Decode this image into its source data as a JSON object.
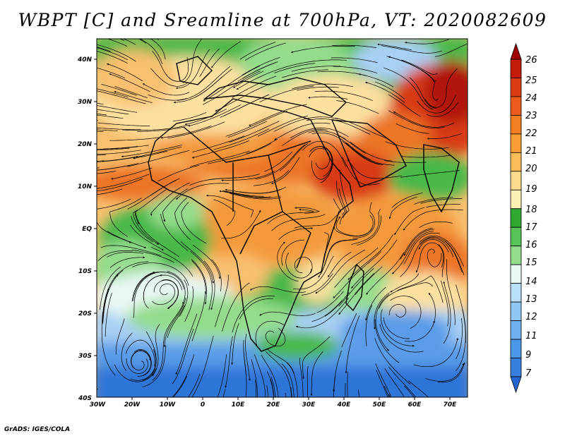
{
  "title": "WBPT [C] and Sreamline at 700hPa, VT: 2020082609",
  "credit": "GrADS: IGES/COLA",
  "lat_labels": [
    "40N",
    "30N",
    "20N",
    "10N",
    "EQ",
    "10S",
    "20S",
    "30S",
    "40S"
  ],
  "lon_labels": [
    "30W",
    "20W",
    "10W",
    "0",
    "10E",
    "20E",
    "30E",
    "40E",
    "50E",
    "60E",
    "70E"
  ],
  "colorbar": {
    "levels": [
      "26",
      "25",
      "24",
      "23",
      "22",
      "21",
      "20",
      "19",
      "18",
      "17",
      "16",
      "15",
      "14",
      "13",
      "12",
      "11",
      "9",
      "7"
    ],
    "colors": [
      "#a00000",
      "#c41a08",
      "#dc3c14",
      "#ec5a1c",
      "#f47e22",
      "#f89c36",
      "#f8bc58",
      "#fcdc8c",
      "#fcf0b4",
      "#30a830",
      "#58c458",
      "#94dc8c",
      "#e8f8f4",
      "#b8e0f8",
      "#90c8f4",
      "#6cb0f0",
      "#4c98e8",
      "#3880e0",
      "#2466d4"
    ]
  },
  "field": {
    "palette": {
      "deep_blue": "#2e74d8",
      "blue": "#5a9ce8",
      "light_blue": "#a8d0f4",
      "pale": "#e8f8f4",
      "light_green": "#94dc8c",
      "green": "#48b848",
      "pale_yellow": "#fce0a0",
      "yellow_orange": "#f8c070",
      "orange": "#f49a3c",
      "dark_orange": "#ec7426",
      "red": "#d83a14",
      "dark_red": "#b01808"
    }
  }
}
